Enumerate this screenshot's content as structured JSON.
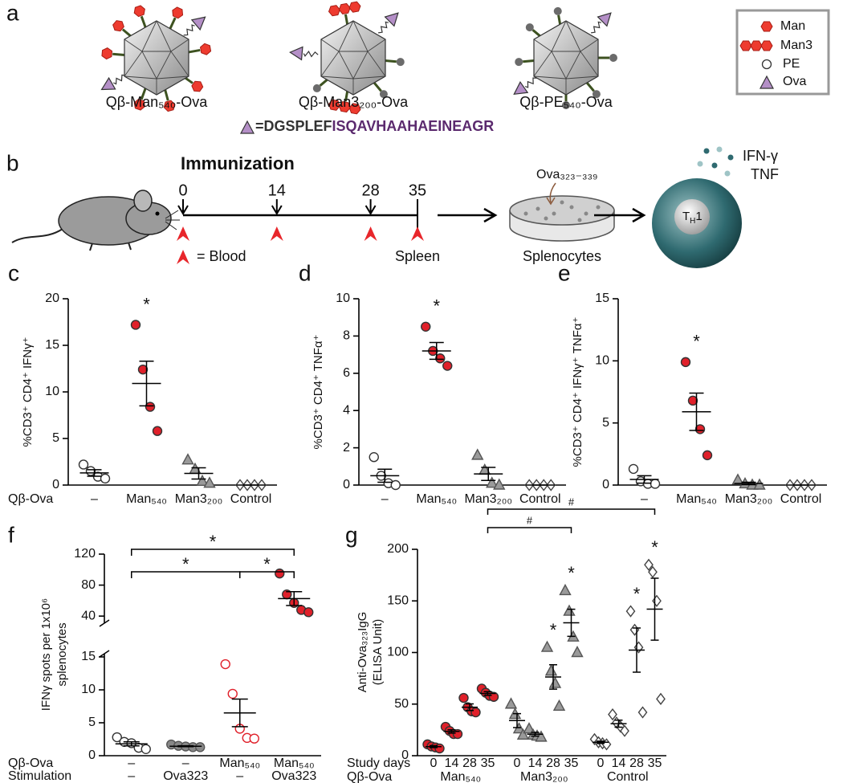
{
  "panel_a": {
    "letter": "a",
    "particles": [
      "Qβ-Man₅₄₀-Ova",
      "Qβ-Man3₂₀₀-Ova",
      "Qβ-PE₅₄₀-Ova"
    ],
    "legend": [
      "Man",
      "Man3",
      "PE",
      "Ova"
    ],
    "sequence": [
      "=DGSPLEF",
      "ISQAVHAAHAEINEAGR"
    ]
  },
  "panel_b": {
    "letter": "b",
    "title": "Immunization",
    "days": [
      0,
      14,
      28,
      35
    ],
    "blood_label": "= Blood",
    "spleen_label": "Spleen",
    "peptide": "Ova₃₂₃₋₃₃₉",
    "cells": "Splenocytes",
    "cytokines": [
      "IFN-γ",
      "TNF"
    ],
    "th1": [
      "T",
      "H",
      "1"
    ]
  },
  "chart_data": [
    {
      "type": "dot",
      "panel": "c",
      "ylabel": "%CD3⁺ CD4⁺ IFNγ⁺",
      "row_label": "Qβ-Ova",
      "categories": [
        "–",
        "Man₅₄₀",
        "Man3₂₀₀",
        "Control"
      ],
      "values": [
        [
          2.2,
          1.5,
          0.9,
          0.7
        ],
        [
          17.2,
          12.4,
          8.4,
          5.8
        ],
        [
          2.7,
          1.7,
          0.4,
          0.2
        ],
        [
          0,
          0,
          0,
          0
        ]
      ],
      "means": [
        1.3,
        10.9,
        1.25,
        0
      ],
      "errors": [
        0.35,
        2.4,
        0.6,
        0
      ],
      "ylim": [
        0,
        20
      ],
      "yticks": [
        0,
        5,
        10,
        15,
        20
      ],
      "annotations": [
        null,
        "*",
        null,
        null
      ],
      "markers": [
        "circle",
        "circle",
        "triangle",
        "diamond"
      ],
      "fills": [
        "#ffffff",
        "#e0202a",
        "#9a9a9a",
        "#ffffff"
      ],
      "strokes": [
        "#333333",
        "#333333",
        "#555555",
        "#444444"
      ]
    },
    {
      "type": "dot",
      "panel": "d",
      "ylabel": "%CD3⁺ CD4⁺ TNFα⁺",
      "categories": [
        "–",
        "Man₅₄₀",
        "Man3₂₀₀",
        "Control"
      ],
      "values": [
        [
          1.5,
          0.5,
          0.1,
          0
        ],
        [
          8.5,
          7.2,
          6.8,
          6.4
        ],
        [
          1.6,
          0.8,
          0.1,
          0
        ],
        [
          0,
          0,
          0,
          0
        ]
      ],
      "means": [
        0.5,
        7.2,
        0.6,
        0
      ],
      "errors": [
        0.35,
        0.45,
        0.35,
        0
      ],
      "ylim": [
        0,
        10
      ],
      "yticks": [
        0,
        2,
        4,
        6,
        8,
        10
      ],
      "annotations": [
        null,
        "*",
        null,
        null
      ],
      "markers": [
        "circle",
        "circle",
        "triangle",
        "diamond"
      ],
      "fills": [
        "#ffffff",
        "#e0202a",
        "#9a9a9a",
        "#ffffff"
      ],
      "strokes": [
        "#333333",
        "#333333",
        "#555555",
        "#444444"
      ]
    },
    {
      "type": "dot",
      "panel": "e",
      "ylabel": "%CD3⁺ CD4⁺ IFNγ⁺ TNFα⁺",
      "categories": [
        "–",
        "Man₅₄₀",
        "Man3₂₀₀",
        "Control"
      ],
      "values": [
        [
          1.3,
          0.3,
          0.1,
          0.1
        ],
        [
          9.9,
          6.8,
          4.5,
          2.4
        ],
        [
          0.4,
          0.1,
          0,
          0
        ],
        [
          0,
          0,
          0,
          0
        ]
      ],
      "means": [
        0.45,
        5.9,
        0.13,
        0
      ],
      "errors": [
        0.3,
        1.5,
        0.1,
        0
      ],
      "ylim": [
        0,
        15
      ],
      "yticks": [
        0,
        5,
        10,
        15
      ],
      "annotations": [
        null,
        "*",
        null,
        null
      ],
      "markers": [
        "circle",
        "circle",
        "triangle",
        "diamond"
      ],
      "fills": [
        "#ffffff",
        "#e0202a",
        "#9a9a9a",
        "#ffffff"
      ],
      "strokes": [
        "#333333",
        "#333333",
        "#555555",
        "#444444"
      ]
    },
    {
      "type": "broken_dot",
      "panel": "f",
      "ylabel": [
        "IFNγ spots per 1x10⁶",
        "splenocytes"
      ],
      "row_labels": [
        "Qβ-Ova",
        "Stimulation"
      ],
      "categories": [
        "–",
        "–",
        "Man₅₄₀",
        "Man₅₄₀"
      ],
      "categories2": [
        "–",
        "Ova323",
        "–",
        "Ova323"
      ],
      "values": [
        [
          2.8,
          2.1,
          1.9,
          1.2,
          1.0
        ],
        [
          1.7,
          1.5,
          1.4,
          1.3,
          1.3
        ],
        [
          13.9,
          9.4,
          4.1,
          2.7,
          2.6
        ],
        [
          95,
          68,
          57,
          48,
          45
        ]
      ],
      "means": [
        1.8,
        1.44,
        6.5,
        62.6
      ],
      "errors": [
        0.3,
        0.07,
        2.1,
        9
      ],
      "ylim": [
        0,
        15
      ],
      "yticks": [
        0,
        5,
        10,
        15
      ],
      "ylim_upper": [
        35,
        120
      ],
      "yticks_upper": [
        40,
        80,
        120
      ],
      "brackets": [
        {
          "from": 0,
          "to": 3,
          "text": "*"
        },
        {
          "from": 0,
          "to": 2,
          "text": "*"
        },
        {
          "from": 2,
          "to": 3,
          "text": "*"
        }
      ],
      "markers": [
        "circle",
        "circle",
        "circle",
        "circle"
      ],
      "fills": [
        "#ffffff",
        "#888888",
        "#ffffff",
        "#e0202a"
      ],
      "strokes": [
        "#333333",
        "#555555",
        "#e0202a",
        "#333333"
      ]
    },
    {
      "type": "grouped_dot",
      "panel": "g",
      "ylabel": [
        "Anti-Ova₃₂₃IgG",
        "(ELISA Unit)"
      ],
      "row_labels": [
        "Study days",
        "Qβ-Ova"
      ],
      "categories": [
        "0",
        "14",
        "28",
        "35"
      ],
      "ylim": [
        0,
        200
      ],
      "yticks": [
        0,
        50,
        100,
        150,
        200
      ],
      "series": [
        {
          "name": "Man₅₄₀",
          "marker": "circle",
          "fill": "#e0202a",
          "stroke": "#333333",
          "values": [
            [
              11,
              9,
              8,
              7
            ],
            [
              28,
              24,
              21,
              21
            ],
            [
              56,
              47,
              43,
              42
            ],
            [
              65,
              61,
              58,
              57
            ]
          ],
          "means": [
            8.8,
            23.5,
            47,
            60.3
          ],
          "errors": [
            0.9,
            1.6,
            3.2,
            1.8
          ],
          "annotations": [
            null,
            null,
            null,
            null
          ]
        },
        {
          "name": "Man3₂₀₀",
          "marker": "triangle",
          "fill": "#9a9a9a",
          "stroke": "#555555",
          "values": [
            [
              50,
              40,
              26,
              20
            ],
            [
              26,
              20,
              19,
              18
            ],
            [
              105,
              82,
              70,
              48
            ],
            [
              160,
              140,
              115,
              100
            ]
          ],
          "means": [
            34,
            20.8,
            76.3,
            128.8
          ],
          "errors": [
            6.8,
            1.8,
            11.8,
            13.1
          ],
          "annotations": [
            null,
            null,
            "*",
            "*"
          ]
        },
        {
          "name": "Control",
          "marker": "diamond",
          "fill": "#ffffff",
          "stroke": "#444444",
          "values": [
            [
              16,
              13,
              12,
              11
            ],
            [
              40,
              32,
              28,
              24
            ],
            [
              140,
              122,
              105,
              42
            ],
            [
              185,
              178,
              150,
              55
            ]
          ],
          "means": [
            13,
            31,
            102.3,
            142
          ],
          "errors": [
            1.1,
            3.4,
            21.4,
            30
          ],
          "annotations": [
            null,
            null,
            "*",
            "*"
          ]
        }
      ],
      "brackets": [
        {
          "from": [
            0,
            3
          ],
          "to": [
            1,
            3
          ],
          "text": "#"
        },
        {
          "from": [
            0,
            3
          ],
          "to": [
            2,
            3
          ],
          "text": "#"
        }
      ]
    }
  ]
}
